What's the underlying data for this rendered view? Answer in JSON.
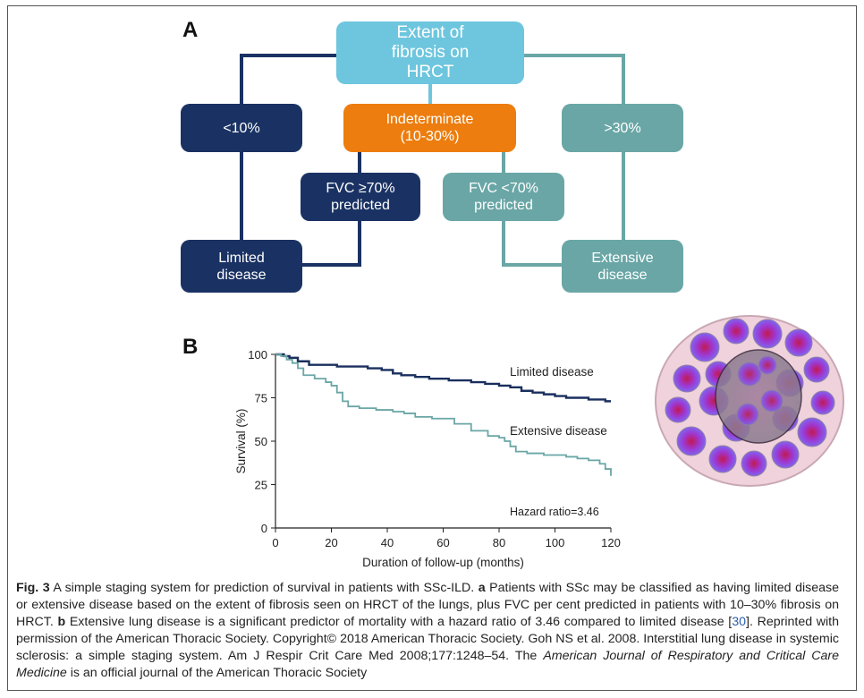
{
  "panel_a": {
    "letter": "A",
    "top": "Extent of fibrosis on HRCT",
    "lt10": "<10%",
    "indeterminate": "Indeterminate (10-30%)",
    "gt30": ">30%",
    "fvc_ge70": "FVC ≥70% predicted",
    "fvc_lt70": "FVC <70% predicted",
    "limited": "Limited disease",
    "extensive": "Extensive disease",
    "colors": {
      "navy": "#1a3263",
      "teal": "#6aa6a6",
      "orange": "#ec7d0e",
      "lightblue": "#6ec6de"
    }
  },
  "panel_b": {
    "letter": "B"
  },
  "chart_data": {
    "type": "line",
    "title": "",
    "xlabel": "Duration of follow-up (months)",
    "ylabel": "Survival (%)",
    "xlim": [
      0,
      120
    ],
    "ylim": [
      0,
      100
    ],
    "xticks": [
      0,
      20,
      40,
      60,
      80,
      100,
      120
    ],
    "yticks": [
      0,
      25,
      50,
      75,
      100
    ],
    "annotation": "Hazard ratio=3.46",
    "series": [
      {
        "name": "Limited disease",
        "color": "#1a2f5e",
        "x": [
          0,
          3,
          5,
          8,
          12,
          18,
          22,
          28,
          33,
          38,
          42,
          45,
          50,
          55,
          62,
          70,
          75,
          80,
          84,
          88,
          92,
          96,
          100,
          104,
          108,
          112,
          116,
          118,
          120
        ],
        "y": [
          100,
          99,
          98,
          96,
          94,
          94,
          93,
          93,
          92,
          91,
          89,
          88,
          87,
          86,
          85,
          84,
          83,
          82,
          81,
          79,
          78,
          77,
          76,
          75,
          75,
          74,
          74,
          73,
          73
        ]
      },
      {
        "name": "Extensive disease",
        "color": "#6aa6a6",
        "x": [
          0,
          2,
          4,
          6,
          8,
          10,
          14,
          18,
          20,
          22,
          24,
          26,
          30,
          36,
          42,
          46,
          50,
          56,
          64,
          70,
          76,
          80,
          82,
          84,
          86,
          90,
          96,
          100,
          104,
          108,
          112,
          116,
          118,
          120
        ],
        "y": [
          100,
          99,
          97,
          95,
          92,
          88,
          86,
          84,
          82,
          78,
          73,
          70,
          69,
          68,
          67,
          66,
          64,
          63,
          60,
          56,
          53,
          52,
          50,
          47,
          44,
          43,
          42,
          42,
          41,
          40,
          39,
          37,
          34,
          30
        ]
      }
    ]
  },
  "caption": {
    "fig_label": "Fig. 3",
    "part1": " A simple staging system for prediction of survival in patients with SSc-ILD. ",
    "a_label": "a",
    "part2": " Patients with SSc may be classified as having limited disease or extensive disease based on the extent of fibrosis seen on HRCT of the lungs, plus FVC per cent predicted in patients with 10–30% fibrosis on HRCT. ",
    "b_label": "b",
    "part3": " Extensive lung disease is a significant predictor of mortality with a hazard ratio of 3.46 compared to limited disease [",
    "ref": "30",
    "part4": "]. Reprinted with permission of the American Thoracic Society. Copyright© 2018 American Thoracic Society. Goh NS et al. 2008. Interstitial lung disease in systemic sclerosis: a simple staging system. Am J Respir Crit Care Med 2008;177:1248–54. The ",
    "journal": "American Journal of Respiratory and Critical Care Medicine",
    "part5": " is an official journal of the American Thoracic Society"
  }
}
